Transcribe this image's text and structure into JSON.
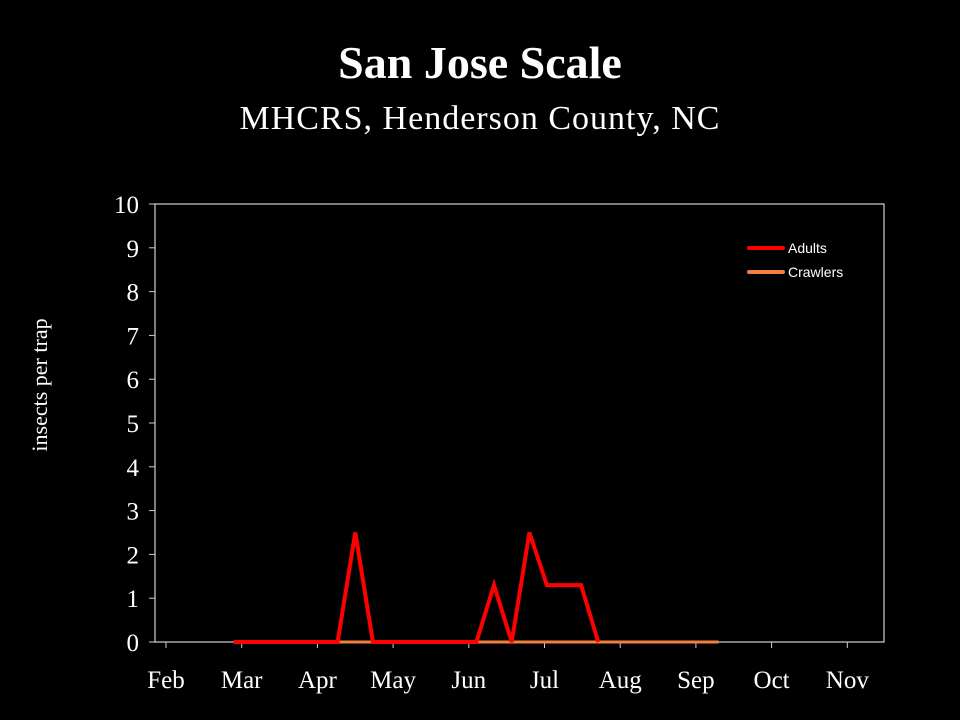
{
  "chart_data": {
    "type": "line",
    "title": "San Jose Scale",
    "subtitle": "MHCRS, Henderson County, NC",
    "xlabel": "",
    "ylabel": "insects per trap",
    "ylim": [
      0,
      10
    ],
    "yticks": [
      "0",
      "1",
      "2",
      "3",
      "4",
      "5",
      "6",
      "7",
      "8",
      "9",
      "10"
    ],
    "xticks": [
      "Feb",
      "Mar",
      "Apr",
      "May",
      "Jun",
      "Jul",
      "Aug",
      "Sep",
      "Oct",
      "Nov"
    ],
    "grid": false,
    "legend_position": "top-right",
    "x": [
      "Feb 26",
      "Mar 5",
      "Mar 12",
      "Mar 19",
      "Mar 26",
      "Apr 2",
      "Apr 9",
      "Apr 16",
      "Apr 23",
      "Apr 30",
      "May 7",
      "May 14",
      "May 21",
      "May 28",
      "Jun 4",
      "Jun 11",
      "Jun 18",
      "Jun 25",
      "Jul 2",
      "Jul 9",
      "Jul 16",
      "Jul 23",
      "Jul 30",
      "Aug 6",
      "Aug 13",
      "Aug 20",
      "Aug 27",
      "Sep 3",
      "Sep 10"
    ],
    "series": [
      {
        "name": "Adults",
        "color": "#ff0000",
        "values": [
          0,
          0,
          0,
          0,
          0,
          0,
          0,
          2.5,
          0,
          0,
          0,
          0,
          0,
          0,
          0,
          1.3,
          0,
          2.5,
          1.3,
          1.3,
          1.3,
          0,
          null,
          null,
          null,
          null,
          null,
          null,
          null
        ]
      },
      {
        "name": "Crawlers",
        "color": "#f08040",
        "values": [
          0,
          0,
          0,
          0,
          0,
          0,
          0,
          0,
          0,
          0,
          0,
          0,
          0,
          0,
          0,
          0,
          0,
          0,
          0,
          0,
          0,
          0,
          0,
          0,
          0,
          0,
          0,
          0,
          0
        ]
      }
    ]
  }
}
